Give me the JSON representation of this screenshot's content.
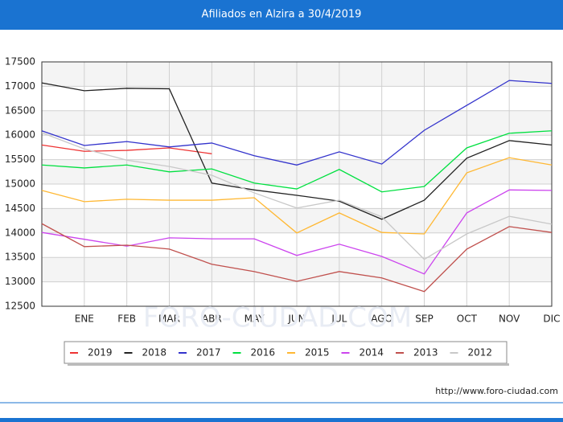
{
  "chart_data": {
    "type": "line",
    "title": "Afiliados en Alzira a 30/4/2019",
    "categories": [
      null,
      "ENE",
      "FEB",
      "MAR",
      "ABR",
      "MAY",
      "JUN",
      "JUL",
      "AGO",
      "SEP",
      "OCT",
      "NOV",
      "DIC"
    ],
    "ylim": [
      12500,
      17500
    ],
    "yticks": [
      12500,
      13000,
      13500,
      14000,
      14500,
      15000,
      15500,
      16000,
      16500,
      17000,
      17500
    ],
    "grid": true,
    "legend": "bottom",
    "series": [
      {
        "name": "2019",
        "color": "#ee3333",
        "values": [
          15800,
          15670,
          15690,
          15740,
          15620,
          null,
          null,
          null,
          null,
          null,
          null,
          null,
          null
        ]
      },
      {
        "name": "2018",
        "color": "#222222",
        "values": [
          17070,
          16910,
          16960,
          16950,
          15020,
          14880,
          14770,
          14650,
          14280,
          14670,
          15530,
          15890,
          15800
        ]
      },
      {
        "name": "2017",
        "color": "#3333cc",
        "values": [
          16090,
          15790,
          15870,
          15760,
          15840,
          15580,
          15390,
          15660,
          15410,
          16100,
          16610,
          17120,
          17060
        ]
      },
      {
        "name": "2016",
        "color": "#00e040",
        "values": [
          15390,
          15330,
          15390,
          15250,
          15310,
          15020,
          14900,
          15300,
          14840,
          14950,
          15740,
          16040,
          16090
        ]
      },
      {
        "name": "2015",
        "color": "#ffb833",
        "values": [
          14870,
          14640,
          14690,
          14670,
          14670,
          14720,
          14000,
          14410,
          14010,
          13980,
          15230,
          15540,
          15390
        ]
      },
      {
        "name": "2014",
        "color": "#cc44ee",
        "values": [
          14010,
          13870,
          13730,
          13900,
          13880,
          13880,
          13540,
          13770,
          13520,
          13160,
          14410,
          14880,
          14870
        ]
      },
      {
        "name": "2013",
        "color": "#c0504d",
        "values": [
          14190,
          13720,
          13750,
          13670,
          13360,
          13210,
          13010,
          13210,
          13080,
          12800,
          13670,
          14130,
          14010
        ]
      },
      {
        "name": "2012",
        "color": "#c8c8c8",
        "values": [
          16050,
          15720,
          15490,
          15360,
          15180,
          14820,
          14510,
          14670,
          14330,
          13460,
          13980,
          14340,
          14180
        ]
      }
    ],
    "watermark": "FORO-CIUDAD.COM",
    "source": "http://www.foro-ciudad.com"
  }
}
